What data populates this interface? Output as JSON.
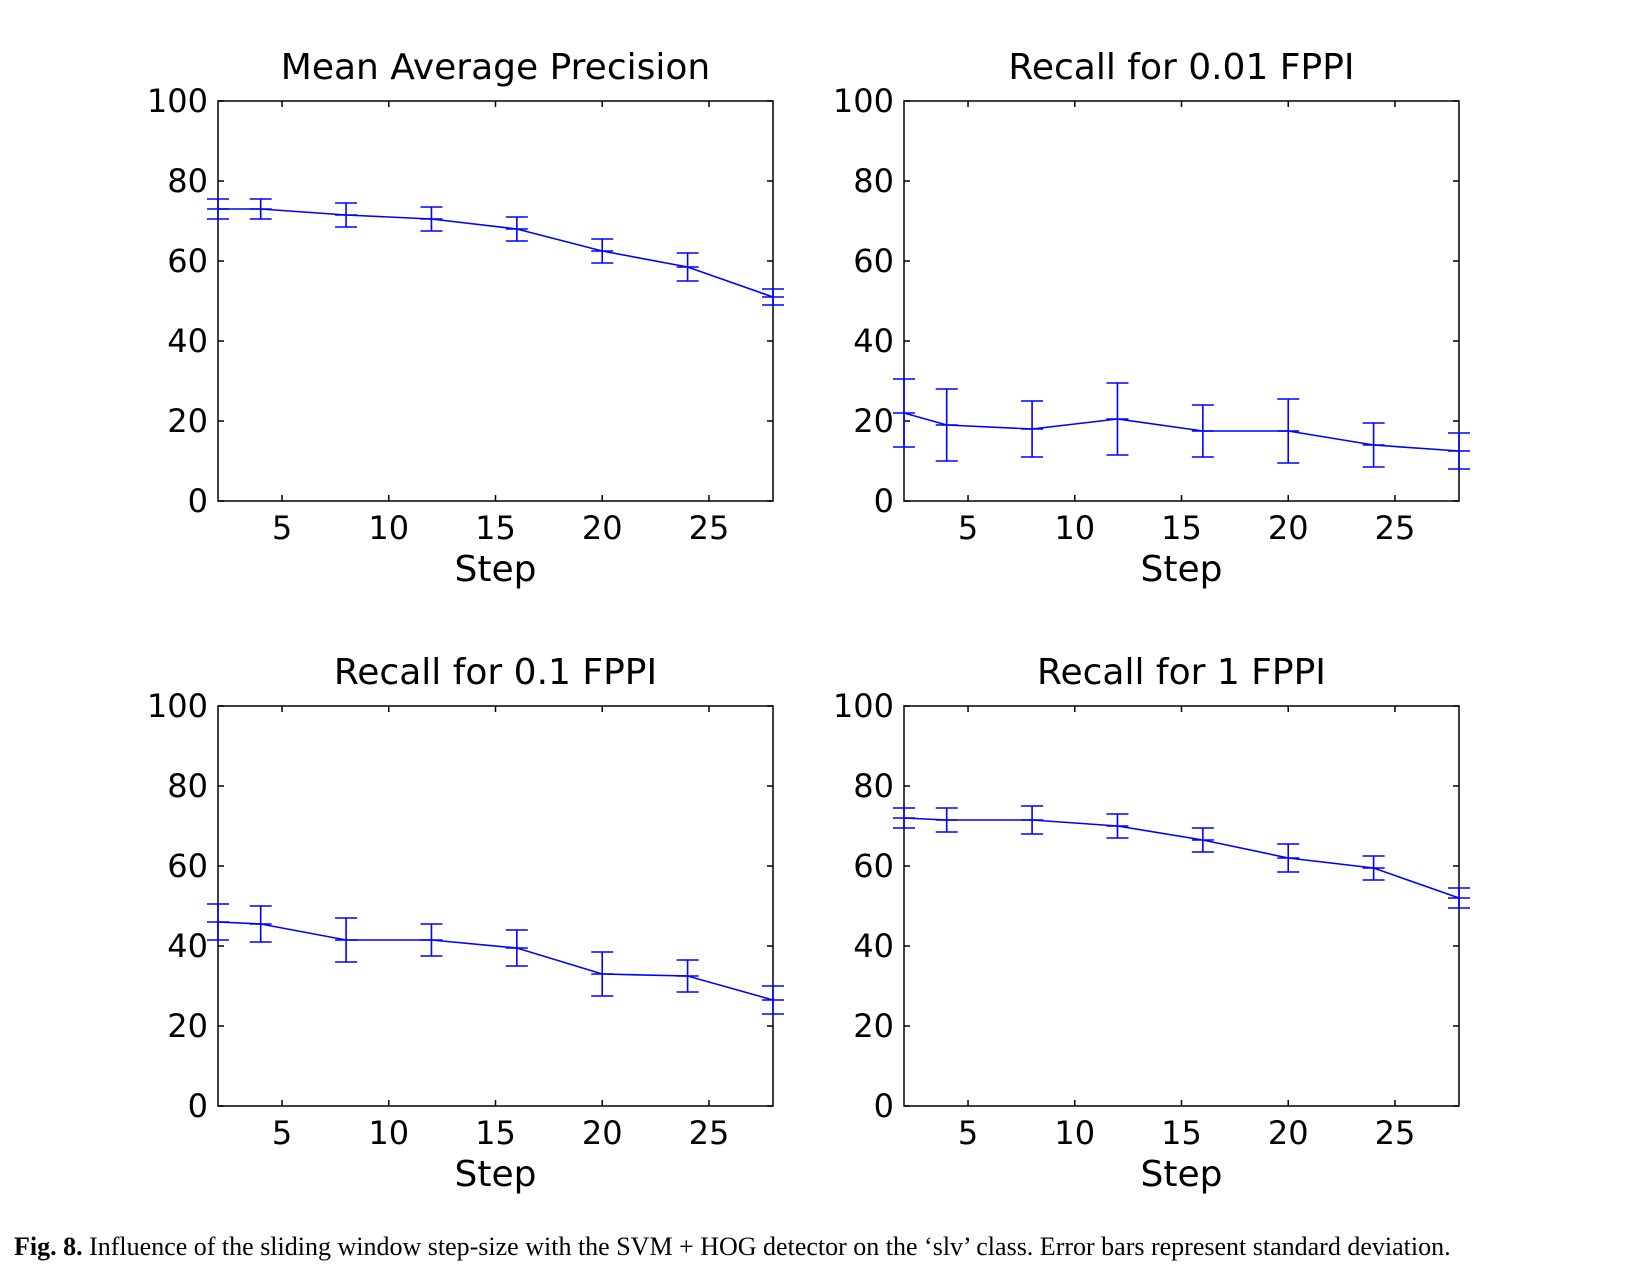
{
  "figure": {
    "caption_label": "Fig. 8.",
    "caption_text": "Influence of the sliding window step-size with the SVM + HOG detector on the ‘slv’ class. Error bars represent standard deviation.",
    "line_color": "#0000ff"
  },
  "chart_data": [
    {
      "type": "line",
      "title": "Mean Average Precision",
      "xlabel": "Step",
      "ylabel": "",
      "xlim": [
        2,
        28
      ],
      "ylim": [
        0,
        100
      ],
      "xticks": [
        5,
        10,
        15,
        20,
        25
      ],
      "yticks": [
        0,
        20,
        40,
        60,
        80,
        100
      ],
      "x": [
        2,
        4,
        8,
        12,
        16,
        20,
        24,
        28
      ],
      "y": [
        73,
        73,
        71.5,
        70.5,
        68,
        62.5,
        58.5,
        51
      ],
      "yerr": [
        2.5,
        2.5,
        3,
        3,
        3,
        3,
        3.5,
        2
      ],
      "error_bars": "standard deviation"
    },
    {
      "type": "line",
      "title": "Recall for 0.01 FPPI",
      "xlabel": "Step",
      "ylabel": "",
      "xlim": [
        2,
        28
      ],
      "ylim": [
        0,
        100
      ],
      "xticks": [
        5,
        10,
        15,
        20,
        25
      ],
      "yticks": [
        0,
        20,
        40,
        60,
        80,
        100
      ],
      "x": [
        2,
        4,
        8,
        12,
        16,
        20,
        24,
        28
      ],
      "y": [
        22,
        19,
        18,
        20.5,
        17.5,
        17.5,
        14,
        12.5
      ],
      "yerr": [
        8.5,
        9,
        7,
        9,
        6.5,
        8,
        5.5,
        4.5
      ],
      "error_bars": "standard deviation"
    },
    {
      "type": "line",
      "title": "Recall for 0.1 FPPI",
      "xlabel": "Step",
      "ylabel": "",
      "xlim": [
        2,
        28
      ],
      "ylim": [
        0,
        100
      ],
      "xticks": [
        5,
        10,
        15,
        20,
        25
      ],
      "yticks": [
        0,
        20,
        40,
        60,
        80,
        100
      ],
      "x": [
        2,
        4,
        8,
        12,
        16,
        20,
        24,
        28
      ],
      "y": [
        46,
        45.5,
        41.5,
        41.5,
        39.5,
        33,
        32.5,
        26.5
      ],
      "yerr": [
        4.5,
        4.5,
        5.5,
        4,
        4.5,
        5.5,
        4,
        3.5
      ],
      "error_bars": "standard deviation"
    },
    {
      "type": "line",
      "title": "Recall for 1 FPPI",
      "xlabel": "Step",
      "ylabel": "",
      "xlim": [
        2,
        28
      ],
      "ylim": [
        0,
        100
      ],
      "xticks": [
        5,
        10,
        15,
        20,
        25
      ],
      "yticks": [
        0,
        20,
        40,
        60,
        80,
        100
      ],
      "x": [
        2,
        4,
        8,
        12,
        16,
        20,
        24,
        28
      ],
      "y": [
        72,
        71.5,
        71.5,
        70,
        66.5,
        62,
        59.5,
        52
      ],
      "yerr": [
        2.5,
        3,
        3.5,
        3,
        3,
        3.5,
        3,
        2.5
      ],
      "error_bars": "standard deviation"
    }
  ]
}
